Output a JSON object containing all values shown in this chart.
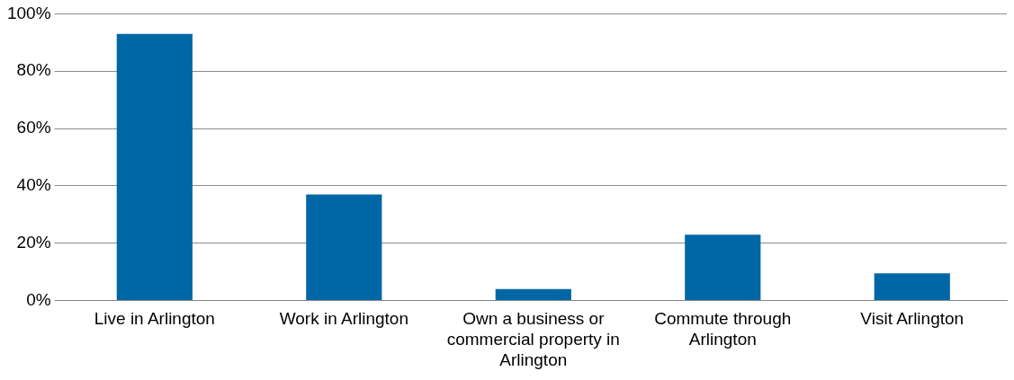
{
  "chart_data": {
    "type": "bar",
    "categories": [
      "Live in Arlington",
      "Work in Arlington",
      "Own a business or commercial property in Arlington",
      "Commute through Arlington",
      "Visit Arlington"
    ],
    "values": [
      93,
      37,
      4,
      23,
      9.5
    ],
    "color": "#0067a6",
    "ylim": [
      0,
      100
    ],
    "yticks": [
      {
        "value": 0,
        "label": "0%"
      },
      {
        "value": 20,
        "label": "20%"
      },
      {
        "value": 40,
        "label": "40%"
      },
      {
        "value": 60,
        "label": "60%"
      },
      {
        "value": 80,
        "label": "80%"
      },
      {
        "value": 100,
        "label": "100%"
      }
    ],
    "grid": "y",
    "legend": false
  }
}
